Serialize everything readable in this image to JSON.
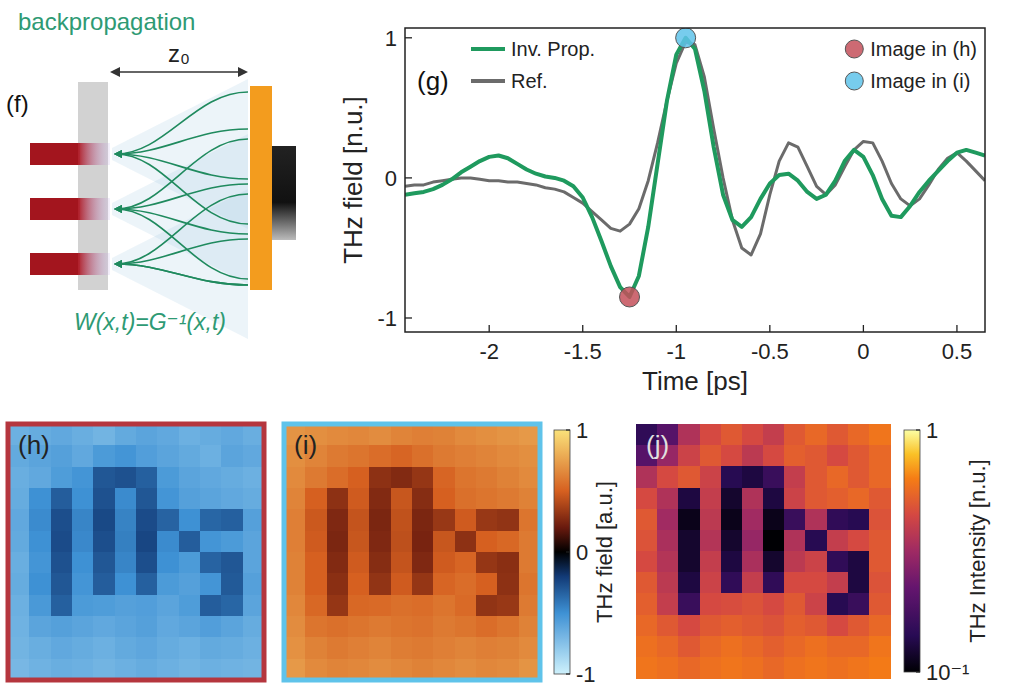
{
  "diagram": {
    "label": "(f)",
    "title": "backpropagation",
    "distance": "z₀",
    "formula": "W(x,t)=G⁻¹(x,t)"
  },
  "chart_data": [
    {
      "type": "line",
      "label": "(g)",
      "xlabel": "Time [ps]",
      "ylabel": "THz field [n.u.]",
      "x": [
        -2.45,
        -2.4,
        -2.35,
        -2.3,
        -2.25,
        -2.2,
        -2.15,
        -2.1,
        -2.05,
        -2,
        -1.95,
        -1.9,
        -1.85,
        -1.8,
        -1.75,
        -1.7,
        -1.65,
        -1.6,
        -1.55,
        -1.5,
        -1.45,
        -1.4,
        -1.35,
        -1.3,
        -1.25,
        -1.2,
        -1.15,
        -1.1,
        -1.05,
        -1,
        -0.95,
        -0.9,
        -0.85,
        -0.8,
        -0.75,
        -0.7,
        -0.65,
        -0.6,
        -0.55,
        -0.5,
        -0.45,
        -0.4,
        -0.35,
        -0.3,
        -0.25,
        -0.2,
        -0.15,
        -0.1,
        -0.05,
        0,
        0.05,
        0.1,
        0.15,
        0.2,
        0.25,
        0.3,
        0.35,
        0.4,
        0.45,
        0.5,
        0.55,
        0.6,
        0.65
      ],
      "xlim": [
        -2.45,
        0.65
      ],
      "xticks": [
        -2,
        -1.5,
        -1,
        -0.5,
        0,
        0.5
      ],
      "ylim": [
        -1.1,
        1.07
      ],
      "yticks": [
        -1,
        0,
        1
      ],
      "grid": false,
      "legend": "top",
      "series": [
        {
          "name": "Inv. Prop.",
          "color": "#1f9a5e",
          "values": [
            -0.12,
            -0.11,
            -0.1,
            -0.08,
            -0.05,
            -0.01,
            0.04,
            0.08,
            0.12,
            0.15,
            0.16,
            0.14,
            0.1,
            0.06,
            0.03,
            0.01,
            0.0,
            -0.02,
            -0.06,
            -0.14,
            -0.28,
            -0.45,
            -0.63,
            -0.78,
            -0.85,
            -0.7,
            -0.35,
            0.1,
            0.55,
            0.88,
            1.0,
            0.92,
            0.62,
            0.22,
            -0.12,
            -0.3,
            -0.35,
            -0.28,
            -0.15,
            -0.04,
            0.02,
            0.03,
            -0.02,
            -0.1,
            -0.15,
            -0.12,
            -0.02,
            0.12,
            0.2,
            0.15,
            0.02,
            -0.15,
            -0.27,
            -0.28,
            -0.2,
            -0.1,
            -0.02,
            0.05,
            0.12,
            0.18,
            0.2,
            0.18,
            0.16
          ]
        },
        {
          "name": "Ref.",
          "color": "#6b6b6b",
          "values": [
            -0.06,
            -0.05,
            -0.05,
            -0.03,
            -0.02,
            -0.01,
            0.0,
            0.0,
            -0.01,
            -0.02,
            -0.02,
            -0.03,
            -0.03,
            -0.04,
            -0.05,
            -0.07,
            -0.08,
            -0.1,
            -0.14,
            -0.18,
            -0.24,
            -0.3,
            -0.36,
            -0.38,
            -0.33,
            -0.22,
            -0.02,
            0.25,
            0.55,
            0.82,
            0.97,
            0.95,
            0.72,
            0.35,
            0.0,
            -0.3,
            -0.5,
            -0.55,
            -0.4,
            -0.12,
            0.12,
            0.25,
            0.22,
            0.08,
            -0.06,
            -0.12,
            -0.05,
            0.08,
            0.2,
            0.26,
            0.25,
            0.12,
            -0.04,
            -0.15,
            -0.2,
            -0.15,
            -0.05,
            0.06,
            0.14,
            0.18,
            0.12,
            0.05,
            -0.02
          ]
        },
        {
          "name": "Image in (h)",
          "type": "scatter",
          "marker": "circle",
          "color": "#c4505a",
          "values": [
            null,
            null,
            null,
            null,
            null,
            null,
            null,
            null,
            null,
            null,
            null,
            null,
            null,
            null,
            null,
            null,
            null,
            null,
            null,
            null,
            null,
            null,
            null,
            null,
            -0.85,
            null,
            null,
            null,
            null,
            null,
            null,
            null,
            null,
            null,
            null,
            null,
            null,
            null,
            null,
            null,
            null,
            null,
            null,
            null,
            null,
            null,
            null,
            null,
            null,
            null,
            null,
            null,
            null,
            null,
            null,
            null,
            null,
            null,
            null,
            null,
            null,
            null,
            null
          ]
        },
        {
          "name": "Image in (i)",
          "type": "scatter",
          "marker": "circle",
          "color": "#5fc3ea",
          "values": [
            null,
            null,
            null,
            null,
            null,
            null,
            null,
            null,
            null,
            null,
            null,
            null,
            null,
            null,
            null,
            null,
            null,
            null,
            null,
            null,
            null,
            null,
            null,
            null,
            null,
            null,
            null,
            null,
            null,
            null,
            1.0,
            null,
            null,
            null,
            null,
            null,
            null,
            null,
            null,
            null,
            null,
            null,
            null,
            null,
            null,
            null,
            null,
            null,
            null,
            null,
            null,
            null,
            null,
            null,
            null,
            null,
            null,
            null,
            null,
            null,
            null,
            null,
            null
          ]
        }
      ]
    },
    {
      "type": "heatmap",
      "label": "(h)",
      "color": "#b5363e",
      "tick_labels": false,
      "zlim": [
        -1,
        1
      ],
      "cells": [
        [
          -0.66,
          -0.64,
          -0.62,
          -0.65,
          -0.68,
          -0.63,
          -0.6,
          -0.62,
          -0.66,
          -0.64,
          -0.62,
          -0.65
        ],
        [
          -0.63,
          -0.6,
          -0.58,
          -0.62,
          -0.55,
          -0.52,
          -0.57,
          -0.6,
          -0.63,
          -0.66,
          -0.6,
          -0.62
        ],
        [
          -0.65,
          -0.62,
          -0.56,
          -0.52,
          -0.3,
          -0.28,
          -0.33,
          -0.55,
          -0.6,
          -0.62,
          -0.64,
          -0.66
        ],
        [
          -0.64,
          -0.5,
          -0.32,
          -0.5,
          -0.28,
          -0.48,
          -0.3,
          -0.52,
          -0.58,
          -0.6,
          -0.62,
          -0.64
        ],
        [
          -0.62,
          -0.48,
          -0.27,
          -0.46,
          -0.25,
          -0.45,
          -0.26,
          -0.34,
          -0.5,
          -0.35,
          -0.33,
          -0.58
        ],
        [
          -0.63,
          -0.5,
          -0.26,
          -0.47,
          -0.27,
          -0.44,
          -0.24,
          -0.48,
          -0.32,
          -0.52,
          -0.55,
          -0.6
        ],
        [
          -0.65,
          -0.52,
          -0.28,
          -0.5,
          -0.3,
          -0.46,
          -0.27,
          -0.5,
          -0.55,
          -0.34,
          -0.3,
          -0.6
        ],
        [
          -0.64,
          -0.5,
          -0.3,
          -0.52,
          -0.32,
          -0.5,
          -0.33,
          -0.55,
          -0.58,
          -0.52,
          -0.31,
          -0.58
        ],
        [
          -0.66,
          -0.54,
          -0.33,
          -0.55,
          -0.56,
          -0.58,
          -0.57,
          -0.6,
          -0.56,
          -0.32,
          -0.35,
          -0.6
        ],
        [
          -0.67,
          -0.6,
          -0.58,
          -0.6,
          -0.62,
          -0.6,
          -0.58,
          -0.62,
          -0.6,
          -0.57,
          -0.6,
          -0.64
        ],
        [
          -0.68,
          -0.65,
          -0.62,
          -0.64,
          -0.66,
          -0.63,
          -0.61,
          -0.64,
          -0.66,
          -0.63,
          -0.64,
          -0.66
        ],
        [
          -0.7,
          -0.67,
          -0.65,
          -0.66,
          -0.68,
          -0.66,
          -0.64,
          -0.66,
          -0.68,
          -0.66,
          -0.67,
          -0.68
        ]
      ]
    },
    {
      "type": "heatmap",
      "label": "(i)",
      "color": "#5fc3ea",
      "tick_labels": false,
      "colorbar": {
        "range": [
          -1,
          1
        ],
        "ticks": [
          1,
          0,
          -1
        ],
        "label": "THz field [a.u.]"
      },
      "cells": [
        [
          0.7,
          0.68,
          0.66,
          0.65,
          0.67,
          0.64,
          0.62,
          0.63,
          0.66,
          0.68,
          0.7,
          0.72
        ],
        [
          0.68,
          0.64,
          0.6,
          0.58,
          0.55,
          0.52,
          0.56,
          0.6,
          0.62,
          0.64,
          0.66,
          0.68
        ],
        [
          0.66,
          0.6,
          0.55,
          0.5,
          0.3,
          0.27,
          0.32,
          0.52,
          0.58,
          0.6,
          0.63,
          0.66
        ],
        [
          0.64,
          0.5,
          0.3,
          0.48,
          0.27,
          0.46,
          0.28,
          0.5,
          0.56,
          0.58,
          0.6,
          0.63
        ],
        [
          0.62,
          0.47,
          0.26,
          0.45,
          0.25,
          0.44,
          0.25,
          0.33,
          0.48,
          0.33,
          0.31,
          0.58
        ],
        [
          0.62,
          0.48,
          0.25,
          0.46,
          0.26,
          0.43,
          0.24,
          0.46,
          0.3,
          0.5,
          0.53,
          0.6
        ],
        [
          0.63,
          0.5,
          0.27,
          0.48,
          0.28,
          0.45,
          0.26,
          0.48,
          0.52,
          0.32,
          0.29,
          0.6
        ],
        [
          0.63,
          0.5,
          0.29,
          0.5,
          0.31,
          0.48,
          0.32,
          0.52,
          0.55,
          0.5,
          0.3,
          0.58
        ],
        [
          0.65,
          0.53,
          0.32,
          0.53,
          0.54,
          0.56,
          0.55,
          0.58,
          0.54,
          0.31,
          0.33,
          0.6
        ],
        [
          0.67,
          0.58,
          0.56,
          0.58,
          0.6,
          0.58,
          0.57,
          0.6,
          0.58,
          0.55,
          0.58,
          0.63
        ],
        [
          0.69,
          0.63,
          0.6,
          0.62,
          0.64,
          0.61,
          0.6,
          0.62,
          0.64,
          0.62,
          0.63,
          0.66
        ],
        [
          0.72,
          0.66,
          0.64,
          0.65,
          0.67,
          0.65,
          0.63,
          0.65,
          0.67,
          0.65,
          0.66,
          0.7
        ]
      ]
    },
    {
      "type": "heatmap",
      "label": "(j)",
      "tick_labels": false,
      "log": true,
      "colorbar": {
        "range": [
          0.1,
          1
        ],
        "ticks": [
          1,
          {
            "value": 0.1,
            "label": "10⁻¹"
          }
        ],
        "label": "THz Intensity [n.u.]"
      },
      "cells": [
        [
          0.15,
          0.2,
          0.35,
          0.45,
          0.5,
          0.45,
          0.4,
          0.5,
          0.55,
          0.5,
          0.55,
          0.6
        ],
        [
          0.2,
          0.3,
          0.42,
          0.5,
          0.45,
          0.38,
          0.45,
          0.52,
          0.5,
          0.45,
          0.5,
          0.55
        ],
        [
          0.35,
          0.45,
          0.5,
          0.42,
          0.14,
          0.13,
          0.16,
          0.4,
          0.5,
          0.55,
          0.5,
          0.55
        ],
        [
          0.45,
          0.35,
          0.13,
          0.4,
          0.12,
          0.35,
          0.13,
          0.42,
          0.5,
          0.52,
          0.55,
          0.5
        ],
        [
          0.5,
          0.32,
          0.11,
          0.38,
          0.11,
          0.32,
          0.11,
          0.16,
          0.35,
          0.15,
          0.14,
          0.48
        ],
        [
          0.48,
          0.34,
          0.12,
          0.36,
          0.12,
          0.3,
          0.1,
          0.35,
          0.14,
          0.4,
          0.45,
          0.5
        ],
        [
          0.45,
          0.36,
          0.12,
          0.4,
          0.13,
          0.34,
          0.12,
          0.38,
          0.42,
          0.15,
          0.13,
          0.5
        ],
        [
          0.5,
          0.38,
          0.13,
          0.42,
          0.15,
          0.4,
          0.15,
          0.45,
          0.45,
          0.4,
          0.13,
          0.48
        ],
        [
          0.52,
          0.4,
          0.16,
          0.45,
          0.46,
          0.48,
          0.45,
          0.5,
          0.42,
          0.14,
          0.16,
          0.5
        ],
        [
          0.55,
          0.5,
          0.45,
          0.5,
          0.52,
          0.5,
          0.48,
          0.52,
          0.5,
          0.45,
          0.5,
          0.55
        ],
        [
          0.58,
          0.55,
          0.5,
          0.55,
          0.58,
          0.55,
          0.52,
          0.55,
          0.58,
          0.55,
          0.55,
          0.6
        ],
        [
          0.6,
          0.58,
          0.55,
          0.58,
          0.6,
          0.58,
          0.55,
          0.58,
          0.6,
          0.58,
          0.6,
          0.62
        ]
      ]
    }
  ]
}
